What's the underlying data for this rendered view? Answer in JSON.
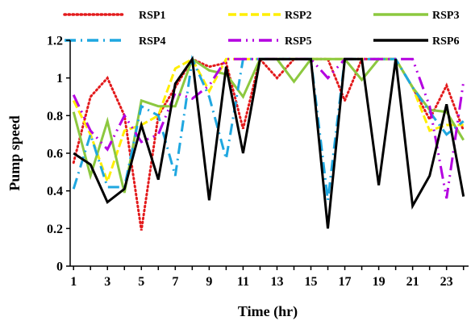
{
  "chart_data": {
    "type": "line",
    "title": "",
    "xlabel": "Time (hr)",
    "ylabel": "Pump speed",
    "x": [
      1,
      2,
      3,
      4,
      5,
      6,
      7,
      8,
      9,
      10,
      11,
      12,
      13,
      14,
      15,
      16,
      17,
      18,
      19,
      20,
      21,
      22,
      23,
      24
    ],
    "xlim": [
      0.8,
      24.3
    ],
    "ylim": [
      0,
      1.2
    ],
    "x_ticks": [
      1,
      3,
      5,
      7,
      9,
      11,
      13,
      15,
      17,
      19,
      21,
      23
    ],
    "y_ticks": [
      0,
      0.2,
      0.4,
      0.6,
      0.8,
      1,
      1.2
    ],
    "y_tick_labels": [
      "0",
      "0.2",
      "0.4",
      "0.6",
      "0.8",
      "1",
      "1.2"
    ],
    "grid": false,
    "legend_position": "top",
    "series": [
      {
        "name": "RSP1",
        "color": "#e31a1c",
        "style": "dotted",
        "values": [
          0.55,
          0.9,
          1.0,
          0.8,
          0.19,
          0.8,
          0.95,
          1.1,
          1.06,
          1.08,
          0.73,
          1.1,
          1.0,
          1.1,
          1.1,
          1.1,
          0.88,
          1.1,
          1.1,
          1.1,
          0.95,
          0.78,
          0.96,
          0.72
        ]
      },
      {
        "name": "RSP2",
        "color": "#ffee00",
        "style": "dashed",
        "values": [
          0.88,
          0.7,
          0.45,
          0.72,
          0.75,
          0.8,
          1.05,
          1.1,
          0.93,
          1.1,
          1.1,
          1.1,
          1.1,
          1.1,
          1.1,
          1.1,
          1.1,
          1.1,
          1.1,
          1.1,
          0.95,
          0.72,
          0.75,
          0.75
        ]
      },
      {
        "name": "RSP3",
        "color": "#8cc83f",
        "style": "solid",
        "values": [
          0.82,
          0.48,
          0.77,
          0.39,
          0.88,
          0.85,
          0.85,
          1.1,
          1.04,
          1.02,
          0.9,
          1.1,
          1.1,
          0.98,
          1.1,
          1.1,
          1.1,
          0.99,
          1.1,
          1.1,
          0.95,
          0.83,
          0.82,
          0.67
        ]
      },
      {
        "name": "RSP4",
        "color": "#1fa7e0",
        "style": "dashdot",
        "values": [
          0.41,
          0.7,
          0.42,
          0.42,
          0.85,
          0.8,
          0.48,
          1.1,
          0.9,
          0.57,
          1.1,
          1.1,
          1.1,
          1.1,
          1.1,
          0.35,
          1.1,
          1.1,
          1.1,
          1.1,
          0.95,
          0.82,
          0.7,
          0.77
        ]
      },
      {
        "name": "RSP5",
        "color": "#b400e0",
        "style": "dashdotdot",
        "values": [
          0.91,
          0.72,
          0.62,
          0.8,
          0.66,
          0.7,
          0.92,
          0.89,
          0.96,
          1.1,
          1.1,
          1.1,
          1.1,
          1.1,
          1.1,
          1.0,
          1.1,
          1.1,
          1.1,
          1.1,
          1.1,
          0.85,
          0.36,
          0.98
        ]
      },
      {
        "name": "RSP6",
        "color": "#000000",
        "style": "solid",
        "values": [
          0.6,
          0.54,
          0.34,
          0.41,
          0.75,
          0.46,
          0.97,
          1.1,
          0.35,
          1.06,
          0.6,
          1.1,
          1.1,
          1.1,
          1.1,
          0.2,
          1.1,
          1.1,
          0.43,
          1.1,
          0.32,
          0.48,
          0.86,
          0.37
        ]
      }
    ]
  }
}
